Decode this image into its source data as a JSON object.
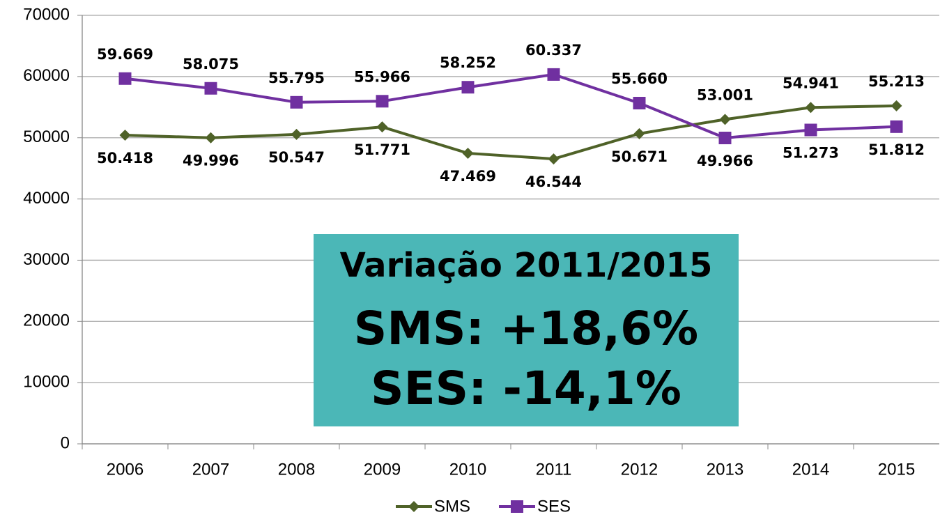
{
  "chart_data": {
    "type": "line",
    "categories": [
      "2006",
      "2007",
      "2008",
      "2009",
      "2010",
      "2011",
      "2012",
      "2013",
      "2014",
      "2015"
    ],
    "series": [
      {
        "name": "SMS",
        "color": "#4f6228",
        "marker": "diamond",
        "values": [
          50418,
          49996,
          50547,
          51771,
          47469,
          46544,
          50671,
          53001,
          54941,
          55213
        ],
        "value_labels": [
          "50.418",
          "49.996",
          "50.547",
          "51.771",
          "47.469",
          "46.544",
          "50.671",
          "53.001",
          "54.941",
          "55.213"
        ]
      },
      {
        "name": "SES",
        "color": "#7030a0",
        "marker": "square",
        "values": [
          59669,
          58075,
          55795,
          55966,
          58252,
          60337,
          55660,
          49966,
          51273,
          51812
        ],
        "value_labels": [
          "59.669",
          "58.075",
          "55.795",
          "55.966",
          "58.252",
          "60.337",
          "55.660",
          "49.966",
          "51.273",
          "51.812"
        ]
      }
    ],
    "ylim": [
      0,
      70000
    ],
    "yticks": [
      0,
      10000,
      20000,
      30000,
      40000,
      50000,
      60000,
      70000
    ],
    "grid": true,
    "legend": "bottom",
    "annotations": [
      "Variação 2011/2015",
      "SMS: +18,6%",
      "SES: -14,1%"
    ],
    "annotation_color": "#4bb7b7"
  }
}
